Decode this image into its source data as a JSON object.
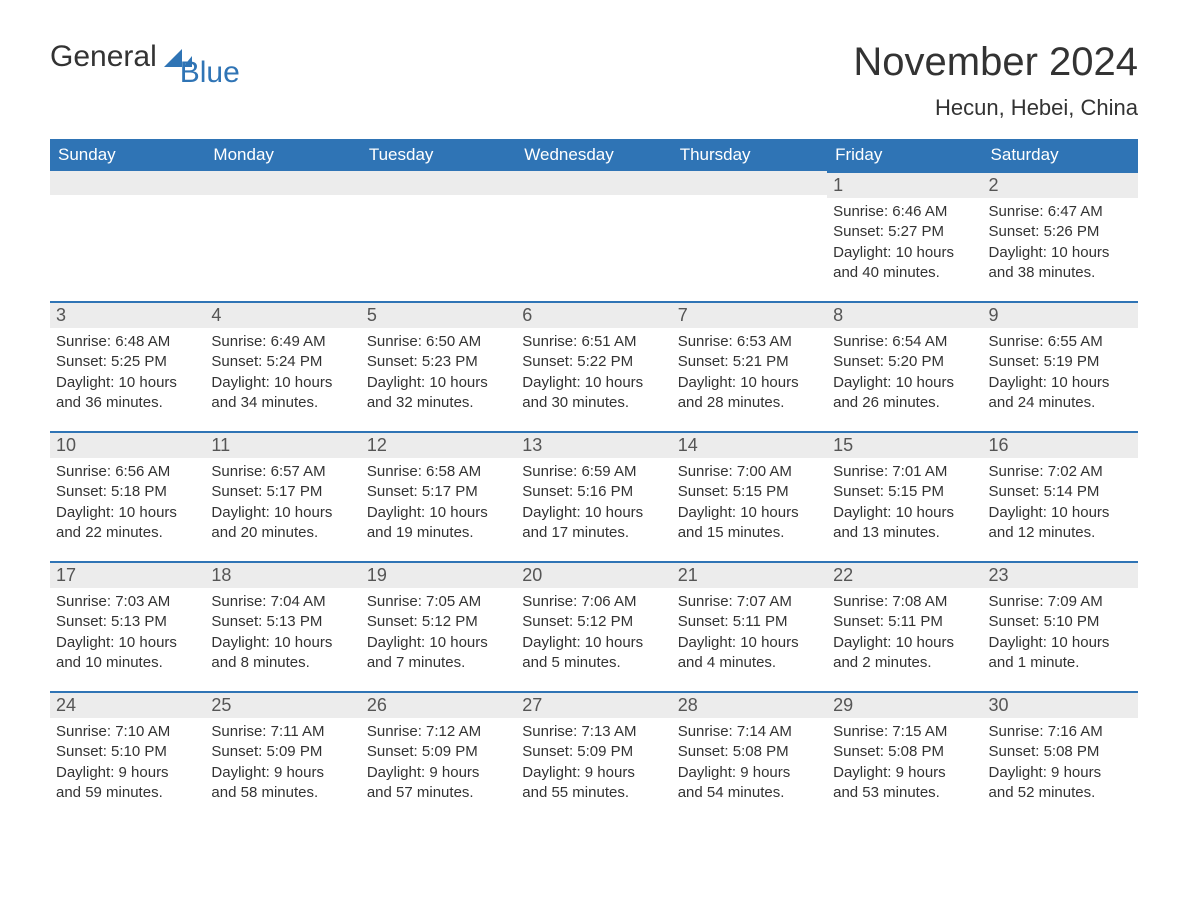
{
  "logo": {
    "word1": "General",
    "word2": "Blue",
    "sail_color": "#2f74b5",
    "text_color_dark": "#333333"
  },
  "title": "November 2024",
  "location": "Hecun, Hebei, China",
  "columns": [
    "Sunday",
    "Monday",
    "Tuesday",
    "Wednesday",
    "Thursday",
    "Friday",
    "Saturday"
  ],
  "colors": {
    "header_bg": "#2f74b5",
    "header_text": "#ffffff",
    "daybar_bg": "#ececec",
    "daybar_border": "#2f74b5",
    "body_text": "#333333",
    "page_bg": "#ffffff"
  },
  "fonts": {
    "title_size_pt": 30,
    "location_size_pt": 17,
    "header_size_pt": 13,
    "daynum_size_pt": 14,
    "body_size_pt": 11
  },
  "weeks": [
    [
      null,
      null,
      null,
      null,
      null,
      {
        "num": "1",
        "sunrise": "Sunrise: 6:46 AM",
        "sunset": "Sunset: 5:27 PM",
        "daylight1": "Daylight: 10 hours",
        "daylight2": "and 40 minutes."
      },
      {
        "num": "2",
        "sunrise": "Sunrise: 6:47 AM",
        "sunset": "Sunset: 5:26 PM",
        "daylight1": "Daylight: 10 hours",
        "daylight2": "and 38 minutes."
      }
    ],
    [
      {
        "num": "3",
        "sunrise": "Sunrise: 6:48 AM",
        "sunset": "Sunset: 5:25 PM",
        "daylight1": "Daylight: 10 hours",
        "daylight2": "and 36 minutes."
      },
      {
        "num": "4",
        "sunrise": "Sunrise: 6:49 AM",
        "sunset": "Sunset: 5:24 PM",
        "daylight1": "Daylight: 10 hours",
        "daylight2": "and 34 minutes."
      },
      {
        "num": "5",
        "sunrise": "Sunrise: 6:50 AM",
        "sunset": "Sunset: 5:23 PM",
        "daylight1": "Daylight: 10 hours",
        "daylight2": "and 32 minutes."
      },
      {
        "num": "6",
        "sunrise": "Sunrise: 6:51 AM",
        "sunset": "Sunset: 5:22 PM",
        "daylight1": "Daylight: 10 hours",
        "daylight2": "and 30 minutes."
      },
      {
        "num": "7",
        "sunrise": "Sunrise: 6:53 AM",
        "sunset": "Sunset: 5:21 PM",
        "daylight1": "Daylight: 10 hours",
        "daylight2": "and 28 minutes."
      },
      {
        "num": "8",
        "sunrise": "Sunrise: 6:54 AM",
        "sunset": "Sunset: 5:20 PM",
        "daylight1": "Daylight: 10 hours",
        "daylight2": "and 26 minutes."
      },
      {
        "num": "9",
        "sunrise": "Sunrise: 6:55 AM",
        "sunset": "Sunset: 5:19 PM",
        "daylight1": "Daylight: 10 hours",
        "daylight2": "and 24 minutes."
      }
    ],
    [
      {
        "num": "10",
        "sunrise": "Sunrise: 6:56 AM",
        "sunset": "Sunset: 5:18 PM",
        "daylight1": "Daylight: 10 hours",
        "daylight2": "and 22 minutes."
      },
      {
        "num": "11",
        "sunrise": "Sunrise: 6:57 AM",
        "sunset": "Sunset: 5:17 PM",
        "daylight1": "Daylight: 10 hours",
        "daylight2": "and 20 minutes."
      },
      {
        "num": "12",
        "sunrise": "Sunrise: 6:58 AM",
        "sunset": "Sunset: 5:17 PM",
        "daylight1": "Daylight: 10 hours",
        "daylight2": "and 19 minutes."
      },
      {
        "num": "13",
        "sunrise": "Sunrise: 6:59 AM",
        "sunset": "Sunset: 5:16 PM",
        "daylight1": "Daylight: 10 hours",
        "daylight2": "and 17 minutes."
      },
      {
        "num": "14",
        "sunrise": "Sunrise: 7:00 AM",
        "sunset": "Sunset: 5:15 PM",
        "daylight1": "Daylight: 10 hours",
        "daylight2": "and 15 minutes."
      },
      {
        "num": "15",
        "sunrise": "Sunrise: 7:01 AM",
        "sunset": "Sunset: 5:15 PM",
        "daylight1": "Daylight: 10 hours",
        "daylight2": "and 13 minutes."
      },
      {
        "num": "16",
        "sunrise": "Sunrise: 7:02 AM",
        "sunset": "Sunset: 5:14 PM",
        "daylight1": "Daylight: 10 hours",
        "daylight2": "and 12 minutes."
      }
    ],
    [
      {
        "num": "17",
        "sunrise": "Sunrise: 7:03 AM",
        "sunset": "Sunset: 5:13 PM",
        "daylight1": "Daylight: 10 hours",
        "daylight2": "and 10 minutes."
      },
      {
        "num": "18",
        "sunrise": "Sunrise: 7:04 AM",
        "sunset": "Sunset: 5:13 PM",
        "daylight1": "Daylight: 10 hours",
        "daylight2": "and 8 minutes."
      },
      {
        "num": "19",
        "sunrise": "Sunrise: 7:05 AM",
        "sunset": "Sunset: 5:12 PM",
        "daylight1": "Daylight: 10 hours",
        "daylight2": "and 7 minutes."
      },
      {
        "num": "20",
        "sunrise": "Sunrise: 7:06 AM",
        "sunset": "Sunset: 5:12 PM",
        "daylight1": "Daylight: 10 hours",
        "daylight2": "and 5 minutes."
      },
      {
        "num": "21",
        "sunrise": "Sunrise: 7:07 AM",
        "sunset": "Sunset: 5:11 PM",
        "daylight1": "Daylight: 10 hours",
        "daylight2": "and 4 minutes."
      },
      {
        "num": "22",
        "sunrise": "Sunrise: 7:08 AM",
        "sunset": "Sunset: 5:11 PM",
        "daylight1": "Daylight: 10 hours",
        "daylight2": "and 2 minutes."
      },
      {
        "num": "23",
        "sunrise": "Sunrise: 7:09 AM",
        "sunset": "Sunset: 5:10 PM",
        "daylight1": "Daylight: 10 hours",
        "daylight2": "and 1 minute."
      }
    ],
    [
      {
        "num": "24",
        "sunrise": "Sunrise: 7:10 AM",
        "sunset": "Sunset: 5:10 PM",
        "daylight1": "Daylight: 9 hours",
        "daylight2": "and 59 minutes."
      },
      {
        "num": "25",
        "sunrise": "Sunrise: 7:11 AM",
        "sunset": "Sunset: 5:09 PM",
        "daylight1": "Daylight: 9 hours",
        "daylight2": "and 58 minutes."
      },
      {
        "num": "26",
        "sunrise": "Sunrise: 7:12 AM",
        "sunset": "Sunset: 5:09 PM",
        "daylight1": "Daylight: 9 hours",
        "daylight2": "and 57 minutes."
      },
      {
        "num": "27",
        "sunrise": "Sunrise: 7:13 AM",
        "sunset": "Sunset: 5:09 PM",
        "daylight1": "Daylight: 9 hours",
        "daylight2": "and 55 minutes."
      },
      {
        "num": "28",
        "sunrise": "Sunrise: 7:14 AM",
        "sunset": "Sunset: 5:08 PM",
        "daylight1": "Daylight: 9 hours",
        "daylight2": "and 54 minutes."
      },
      {
        "num": "29",
        "sunrise": "Sunrise: 7:15 AM",
        "sunset": "Sunset: 5:08 PM",
        "daylight1": "Daylight: 9 hours",
        "daylight2": "and 53 minutes."
      },
      {
        "num": "30",
        "sunrise": "Sunrise: 7:16 AM",
        "sunset": "Sunset: 5:08 PM",
        "daylight1": "Daylight: 9 hours",
        "daylight2": "and 52 minutes."
      }
    ]
  ]
}
